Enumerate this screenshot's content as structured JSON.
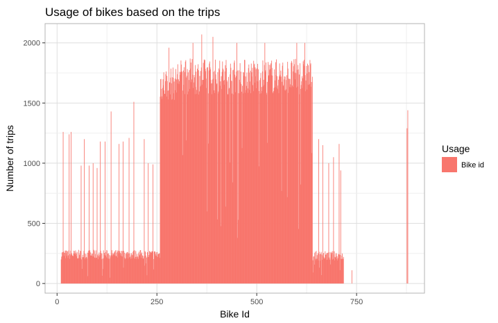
{
  "chart_data": {
    "type": "bar",
    "title": "Usage of bikes based on the trips",
    "xlabel": "Bike Id",
    "ylabel": "Number of trips",
    "xlim": [
      -30,
      920
    ],
    "ylim": [
      -80,
      2160
    ],
    "x_ticks": [
      0,
      250,
      500,
      750
    ],
    "y_ticks": [
      0,
      500,
      1000,
      1500,
      2000
    ],
    "grid": true,
    "legend": {
      "title": "Usage",
      "position": "right",
      "entries": [
        {
          "label": "Bike id",
          "color": "#f8766d"
        }
      ]
    },
    "series": [
      {
        "name": "Bike id",
        "color": "#f8766d",
        "segments": [
          {
            "x_range": [
              10,
              258
            ],
            "typical": 240,
            "spread": 40
          },
          {
            "x_range": [
              258,
              300
            ],
            "typical": 1660,
            "spread": 140
          },
          {
            "x_range": [
              300,
              640
            ],
            "typical": 1720,
            "spread": 150
          },
          {
            "x_range": [
              640,
              718
            ],
            "typical": 230,
            "spread": 40
          }
        ],
        "spikes": [
          {
            "x": 15,
            "y": 1260
          },
          {
            "x": 30,
            "y": 1240
          },
          {
            "x": 35,
            "y": 1260
          },
          {
            "x": 60,
            "y": 980
          },
          {
            "x": 68,
            "y": 1200
          },
          {
            "x": 80,
            "y": 980
          },
          {
            "x": 90,
            "y": 1000
          },
          {
            "x": 100,
            "y": 960
          },
          {
            "x": 108,
            "y": 1180
          },
          {
            "x": 120,
            "y": 1180
          },
          {
            "x": 135,
            "y": 1430
          },
          {
            "x": 155,
            "y": 1160
          },
          {
            "x": 165,
            "y": 1180
          },
          {
            "x": 180,
            "y": 1210
          },
          {
            "x": 192,
            "y": 1510
          },
          {
            "x": 218,
            "y": 1200
          },
          {
            "x": 228,
            "y": 1000
          },
          {
            "x": 240,
            "y": 990
          },
          {
            "x": 280,
            "y": 1960
          },
          {
            "x": 340,
            "y": 2000
          },
          {
            "x": 362,
            "y": 2070
          },
          {
            "x": 390,
            "y": 2050
          },
          {
            "x": 450,
            "y": 2000
          },
          {
            "x": 520,
            "y": 2000
          },
          {
            "x": 600,
            "y": 2000
          },
          {
            "x": 620,
            "y": 2000
          },
          {
            "x": 655,
            "y": 1200
          },
          {
            "x": 665,
            "y": 1150
          },
          {
            "x": 680,
            "y": 1000
          },
          {
            "x": 692,
            "y": 1050
          },
          {
            "x": 706,
            "y": 1160
          },
          {
            "x": 710,
            "y": 940
          }
        ],
        "isolated": [
          {
            "x": 738,
            "y": 110
          },
          {
            "x": 876,
            "y": 1290
          },
          {
            "x": 878,
            "y": 1440
          }
        ]
      }
    ]
  }
}
